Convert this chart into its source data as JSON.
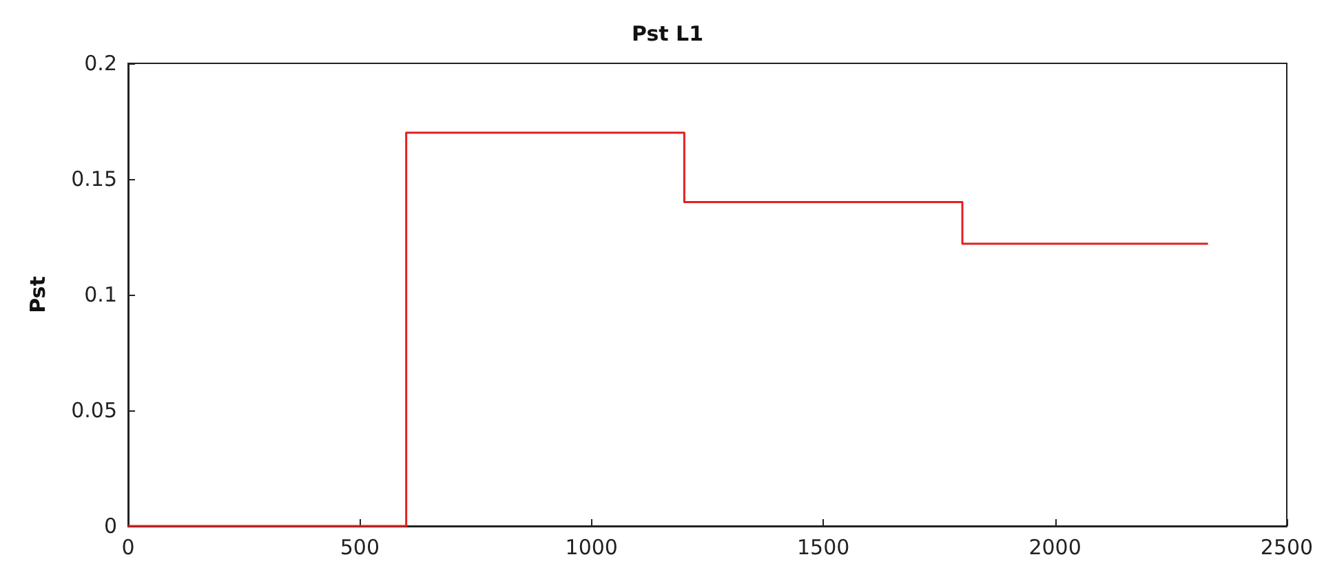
{
  "chart_data": {
    "type": "step",
    "title": "Pst L1",
    "ylabel": "Pst",
    "x": [
      0,
      600,
      1200,
      1800,
      2330
    ],
    "series": [
      {
        "color": "#e02020",
        "values": [
          0,
          0.17,
          0.14,
          0.122,
          0.122
        ]
      }
    ],
    "xlim": [
      0,
      2500
    ],
    "xticks": [
      0,
      500,
      1000,
      1500,
      2000,
      2500
    ],
    "ylim": [
      0,
      0.2
    ],
    "yticks": [
      0,
      0.05,
      0.1,
      0.15,
      0.2
    ],
    "grid": false,
    "marker": "none",
    "line_style": "solid"
  }
}
